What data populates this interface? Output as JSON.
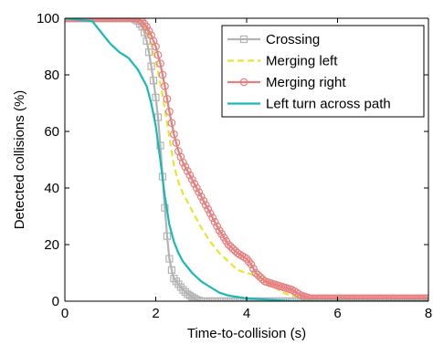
{
  "chart_data": {
    "type": "line",
    "title": "",
    "xlabel": "Time-to-collision (s)",
    "ylabel": "Detected collisions (%)",
    "xlim": [
      0,
      8
    ],
    "ylim": [
      0,
      100
    ],
    "xticks": [
      0,
      2,
      4,
      6,
      8
    ],
    "yticks": [
      0,
      20,
      40,
      60,
      80,
      100
    ],
    "grid": false,
    "legend_position": "top-right",
    "series": [
      {
        "name": "Crossing",
        "color": "#b3b3b3",
        "dash": "",
        "marker": "square",
        "x": [
          0,
          1.5,
          1.6,
          1.7,
          1.75,
          1.8,
          1.85,
          1.9,
          1.95,
          2.0,
          2.05,
          2.1,
          2.15,
          2.2,
          2.25,
          2.3,
          2.35,
          2.4,
          2.5,
          2.6,
          2.7,
          2.8,
          2.9,
          3.0,
          3.2,
          8.0
        ],
        "y": [
          100,
          100,
          99,
          97,
          95,
          92,
          88,
          83,
          78,
          72,
          65,
          55,
          44,
          33,
          23,
          15,
          11,
          8,
          6,
          4,
          2.5,
          1.5,
          0.5,
          0,
          0,
          0
        ]
      },
      {
        "name": "Merging left",
        "color": "#e6e632",
        "dash": "7,4",
        "marker": "none",
        "x": [
          0,
          1.6,
          1.7,
          1.8,
          1.9,
          2.0,
          2.1,
          2.2,
          2.3,
          2.4,
          2.5,
          2.6,
          2.7,
          2.8,
          2.9,
          3.0,
          3.2,
          3.4,
          3.6,
          3.8,
          4.0,
          4.2,
          4.4,
          4.6,
          4.8,
          5.0,
          5.2,
          5.4,
          8.0
        ],
        "y": [
          100,
          100,
          99,
          96,
          91,
          85,
          77,
          68,
          58,
          48,
          42,
          38,
          35,
          32,
          29,
          26,
          21,
          17,
          14,
          11,
          10,
          9,
          7,
          5,
          3,
          2,
          1,
          0,
          0
        ]
      },
      {
        "name": "Merging right",
        "color": "#e68080",
        "dash": "",
        "marker": "circle",
        "x": [
          0,
          1.6,
          1.7,
          1.8,
          1.9,
          2.0,
          2.1,
          2.2,
          2.3,
          2.4,
          2.5,
          2.6,
          2.7,
          2.8,
          2.9,
          3.0,
          3.2,
          3.4,
          3.6,
          3.8,
          4.0,
          4.1,
          4.2,
          4.4,
          4.6,
          4.8,
          5.0,
          5.2,
          5.4,
          8.0
        ],
        "y": [
          100,
          100,
          99,
          97,
          94,
          90,
          84,
          76,
          67,
          59,
          53,
          49,
          46,
          43,
          40,
          37,
          31,
          25,
          20,
          17,
          15,
          13,
          10,
          7,
          6,
          5,
          4,
          2,
          1,
          1
        ]
      },
      {
        "name": "Left turn across path",
        "color": "#1ab8b8",
        "dash": "",
        "marker": "none",
        "x": [
          0,
          0.6,
          0.8,
          1.0,
          1.2,
          1.4,
          1.6,
          1.8,
          1.9,
          2.0,
          2.1,
          2.2,
          2.3,
          2.4,
          2.5,
          2.6,
          2.8,
          3.0,
          3.2,
          3.4,
          3.6,
          4.0,
          4.5,
          5.0,
          8.0
        ],
        "y": [
          100,
          99,
          95,
          91,
          88,
          86,
          82,
          76,
          70,
          62,
          50,
          37,
          27,
          21,
          17,
          14,
          10,
          7,
          5,
          3,
          2,
          1,
          0.5,
          0,
          0
        ]
      }
    ]
  }
}
